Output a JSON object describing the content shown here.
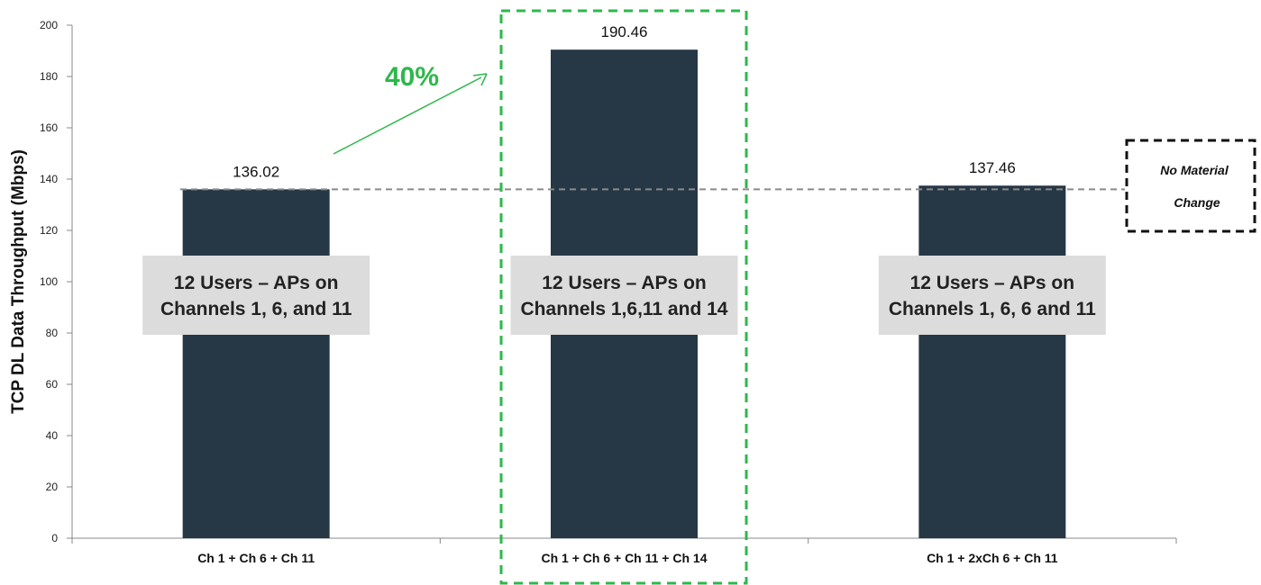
{
  "chart_data": {
    "type": "bar",
    "title": "",
    "xlabel": "",
    "ylabel": "TCP DL Data Throughput (Mbps)",
    "ylim": [
      0,
      200
    ],
    "yticks": [
      0,
      20,
      40,
      60,
      80,
      100,
      120,
      140,
      160,
      180,
      200
    ],
    "categories": [
      "Ch 1 + Ch 6 + Ch 11",
      "Ch 1 + Ch 6 + Ch 11 + Ch 14",
      "Ch 1 + 2xCh 6 + Ch 11"
    ],
    "values": [
      136.02,
      190.46,
      137.46
    ],
    "value_labels": [
      "136.02",
      "190.46",
      "137.46"
    ],
    "bar_color": "#263746",
    "grid": false,
    "legend": "none",
    "annotations": {
      "bar_boxes": [
        [
          "12 Users – APs on",
          "Channels 1, 6, and 11"
        ],
        [
          "12 Users – APs on",
          "Channels 1,6,11 and 14"
        ],
        [
          "12 Users – APs on",
          "Channels 1, 6, 6 and 11"
        ]
      ],
      "increase_label": "40%",
      "increase_color": "#2db84b",
      "reference_line_value": 136.02,
      "note_lines": [
        "No Material",
        "Change"
      ]
    }
  }
}
